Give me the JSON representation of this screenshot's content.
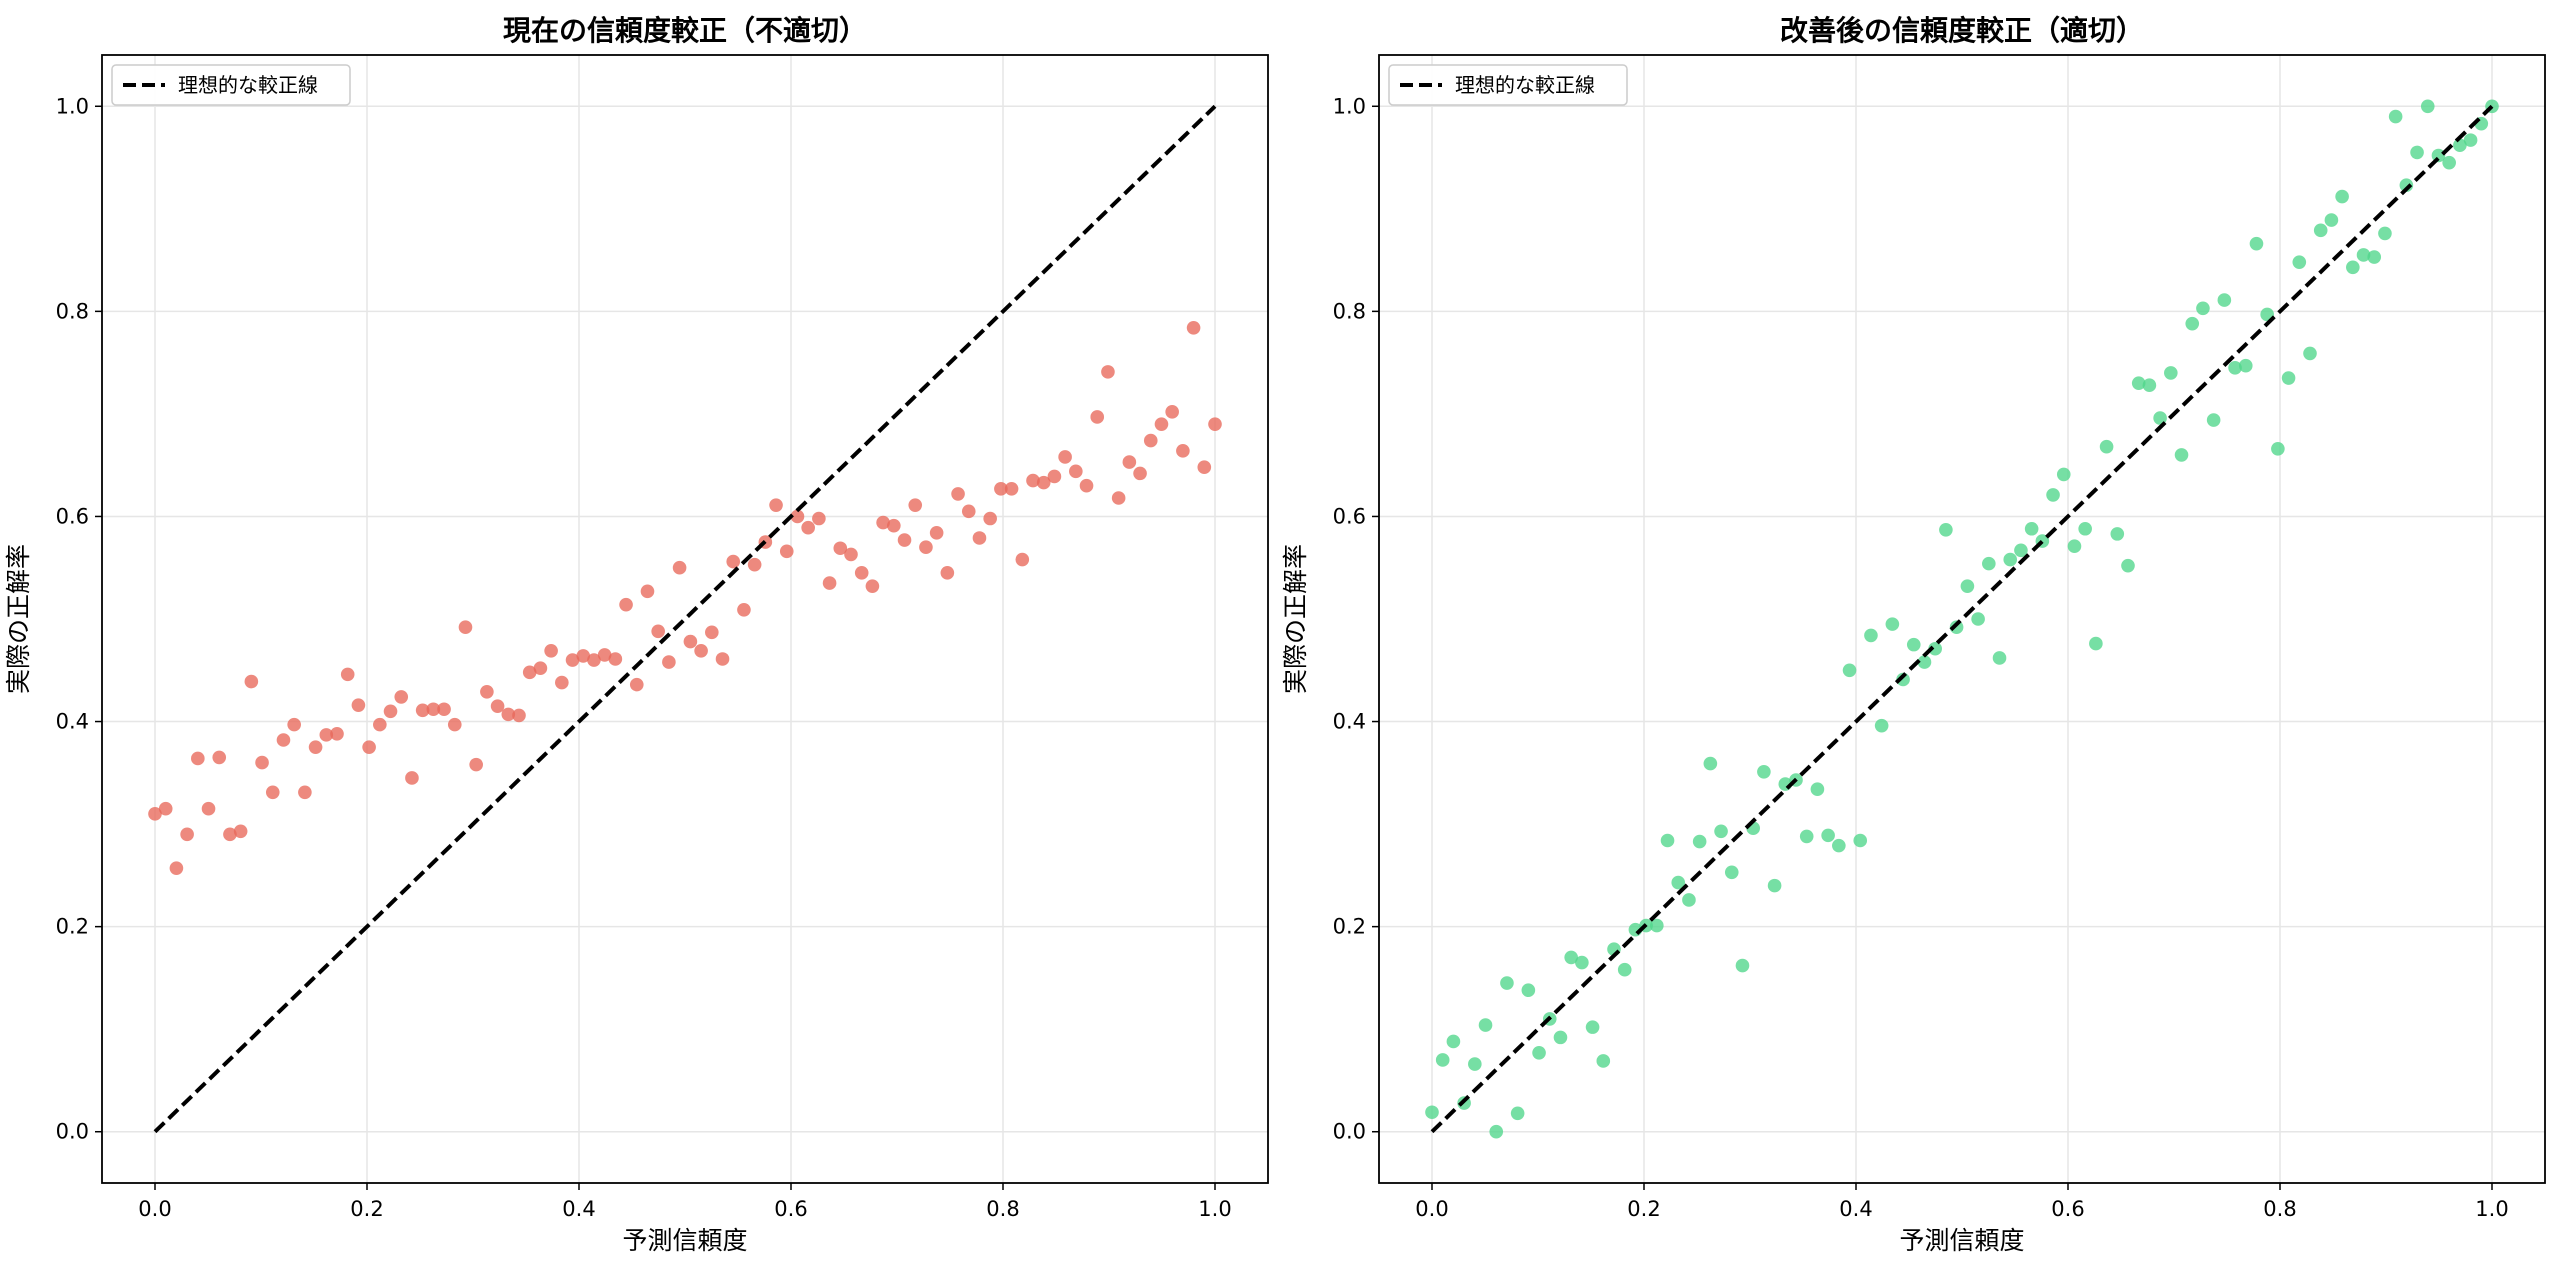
{
  "chart_data": [
    {
      "type": "scatter",
      "title": "現在の信頼度較正（不適切）",
      "xlabel": "予測信頼度",
      "ylabel": "実際の正解率",
      "xlim": [
        -0.05,
        1.05
      ],
      "ylim": [
        -0.05,
        1.05
      ],
      "xticks": [
        "0.0",
        "0.2",
        "0.4",
        "0.6",
        "0.8",
        "1.0"
      ],
      "yticks": [
        "0.0",
        "0.2",
        "0.4",
        "0.6",
        "0.8",
        "1.0"
      ],
      "grid": true,
      "legend": {
        "position": "upper-left",
        "entries": [
          "理想的な較正線"
        ]
      },
      "reference_line": {
        "label": "理想的な較正線",
        "from": [
          0,
          0
        ],
        "to": [
          1,
          1
        ],
        "style": "dashed",
        "color": "#000000"
      },
      "series": [
        {
          "color": "#e8685a",
          "x": [
            0.0,
            0.0101,
            0.0202,
            0.0303,
            0.0404,
            0.0505,
            0.0606,
            0.0707,
            0.0808,
            0.0909,
            0.101,
            0.1111,
            0.1212,
            0.1313,
            0.1414,
            0.1515,
            0.1616,
            0.1717,
            0.1818,
            0.1919,
            0.202,
            0.2121,
            0.2222,
            0.2323,
            0.2424,
            0.2525,
            0.2626,
            0.2727,
            0.2828,
            0.2929,
            0.303,
            0.3131,
            0.3232,
            0.3333,
            0.3434,
            0.3535,
            0.3636,
            0.3737,
            0.3838,
            0.3939,
            0.404,
            0.4141,
            0.4242,
            0.4343,
            0.4444,
            0.4545,
            0.4646,
            0.4747,
            0.4848,
            0.4949,
            0.5051,
            0.5152,
            0.5253,
            0.5354,
            0.5455,
            0.5556,
            0.5657,
            0.5758,
            0.5859,
            0.596,
            0.6061,
            0.6162,
            0.6263,
            0.6364,
            0.6465,
            0.6566,
            0.6667,
            0.6768,
            0.6869,
            0.697,
            0.7071,
            0.7172,
            0.7273,
            0.7374,
            0.7475,
            0.7576,
            0.7677,
            0.7778,
            0.7879,
            0.798,
            0.8081,
            0.8182,
            0.8283,
            0.8384,
            0.8485,
            0.8586,
            0.8687,
            0.8788,
            0.8889,
            0.899,
            0.9091,
            0.9192,
            0.9293,
            0.9394,
            0.9495,
            0.9596,
            0.9697,
            0.9798,
            0.9899,
            1.0
          ],
          "y": [
            0.31,
            0.315,
            0.257,
            0.29,
            0.364,
            0.315,
            0.365,
            0.29,
            0.293,
            0.439,
            0.36,
            0.331,
            0.382,
            0.397,
            0.331,
            0.375,
            0.387,
            0.388,
            0.446,
            0.416,
            0.375,
            0.397,
            0.41,
            0.424,
            0.345,
            0.411,
            0.412,
            0.412,
            0.397,
            0.492,
            0.358,
            0.429,
            0.415,
            0.407,
            0.406,
            0.448,
            0.452,
            0.469,
            0.438,
            0.46,
            0.464,
            0.46,
            0.465,
            0.461,
            0.514,
            0.436,
            0.527,
            0.488,
            0.458,
            0.55,
            0.478,
            0.469,
            0.487,
            0.461,
            0.556,
            0.509,
            0.553,
            0.575,
            0.611,
            0.566,
            0.6,
            0.589,
            0.598,
            0.535,
            0.569,
            0.563,
            0.545,
            0.532,
            0.594,
            0.591,
            0.577,
            0.611,
            0.57,
            0.584,
            0.545,
            0.622,
            0.605,
            0.579,
            0.598,
            0.627,
            0.627,
            0.558,
            0.635,
            0.633,
            0.639,
            0.658,
            0.644,
            0.63,
            0.697,
            0.741,
            0.618,
            0.653,
            0.642,
            0.674,
            0.69,
            0.702,
            0.664,
            0.784,
            0.648,
            0.69
          ]
        }
      ]
    },
    {
      "type": "scatter",
      "title": "改善後の信頼度較正（適切）",
      "xlabel": "予測信頼度",
      "ylabel": "実際の正解率",
      "xlim": [
        -0.05,
        1.05
      ],
      "ylim": [
        -0.05,
        1.05
      ],
      "xticks": [
        "0.0",
        "0.2",
        "0.4",
        "0.6",
        "0.8",
        "1.0"
      ],
      "yticks": [
        "0.0",
        "0.2",
        "0.4",
        "0.6",
        "0.8",
        "1.0"
      ],
      "grid": true,
      "legend": {
        "position": "upper-left",
        "entries": [
          "理想的な較正線"
        ]
      },
      "reference_line": {
        "label": "理想的な較正線",
        "from": [
          0,
          0
        ],
        "to": [
          1,
          1
        ],
        "style": "dashed",
        "color": "#000000"
      },
      "series": [
        {
          "color": "#4fd68a",
          "x": [
            0.0,
            0.0101,
            0.0202,
            0.0303,
            0.0404,
            0.0505,
            0.0606,
            0.0707,
            0.0808,
            0.0909,
            0.101,
            0.1111,
            0.1212,
            0.1313,
            0.1414,
            0.1515,
            0.1616,
            0.1717,
            0.1818,
            0.1919,
            0.202,
            0.2121,
            0.2222,
            0.2323,
            0.2424,
            0.2525,
            0.2626,
            0.2727,
            0.2828,
            0.2929,
            0.303,
            0.3131,
            0.3232,
            0.3333,
            0.3434,
            0.3535,
            0.3636,
            0.3737,
            0.3838,
            0.3939,
            0.404,
            0.4141,
            0.4242,
            0.4343,
            0.4444,
            0.4545,
            0.4646,
            0.4747,
            0.4848,
            0.4949,
            0.5051,
            0.5152,
            0.5253,
            0.5354,
            0.5455,
            0.5556,
            0.5657,
            0.5758,
            0.5859,
            0.596,
            0.6061,
            0.6162,
            0.6263,
            0.6364,
            0.6465,
            0.6566,
            0.6667,
            0.6768,
            0.6869,
            0.697,
            0.7071,
            0.7172,
            0.7273,
            0.7374,
            0.7475,
            0.7576,
            0.7677,
            0.7778,
            0.7879,
            0.798,
            0.8081,
            0.8182,
            0.8283,
            0.8384,
            0.8485,
            0.8586,
            0.8687,
            0.8788,
            0.8889,
            0.899,
            0.9091,
            0.9192,
            0.9293,
            0.9394,
            0.9495,
            0.9596,
            0.9697,
            0.9798,
            0.9899,
            1.0
          ],
          "y": [
            0.019,
            0.07,
            0.088,
            0.028,
            0.066,
            0.104,
            0.0,
            0.145,
            0.018,
            0.138,
            0.077,
            0.11,
            0.092,
            0.17,
            0.165,
            0.102,
            0.069,
            0.178,
            0.158,
            0.197,
            0.201,
            0.201,
            0.284,
            0.243,
            0.226,
            0.283,
            0.359,
            0.293,
            0.253,
            0.162,
            0.296,
            0.351,
            0.24,
            0.339,
            0.343,
            0.288,
            0.334,
            0.289,
            0.279,
            0.45,
            0.284,
            0.484,
            0.396,
            0.495,
            0.441,
            0.475,
            0.458,
            0.471,
            0.587,
            0.492,
            0.532,
            0.5,
            0.554,
            0.462,
            0.558,
            0.567,
            0.588,
            0.576,
            0.621,
            0.641,
            0.571,
            0.588,
            0.476,
            0.668,
            0.583,
            0.552,
            0.73,
            0.728,
            0.696,
            0.74,
            0.66,
            0.788,
            0.803,
            0.694,
            0.811,
            0.745,
            0.747,
            0.866,
            0.797,
            0.666,
            0.735,
            0.848,
            0.759,
            0.879,
            0.889,
            0.912,
            0.843,
            0.855,
            0.853,
            0.876,
            0.99,
            0.923,
            0.955,
            1.0,
            0.952,
            0.945,
            0.962,
            0.967,
            0.983,
            1.0
          ]
        }
      ]
    }
  ]
}
